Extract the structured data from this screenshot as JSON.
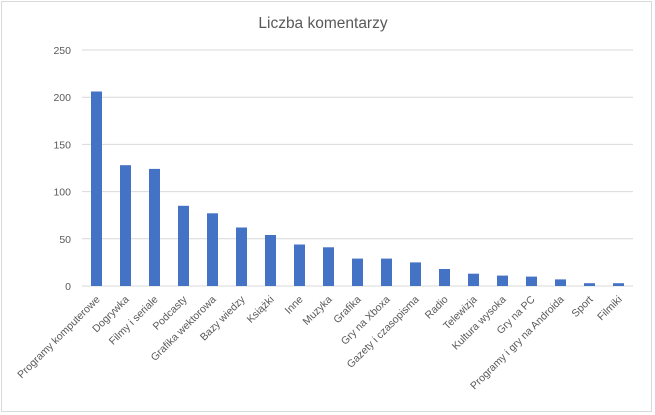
{
  "chart_data": {
    "type": "bar",
    "title": "Liczba komentarzy",
    "categories": [
      "Programy komputerowe",
      "Dogrywka",
      "Filmy i seriale",
      "Podcasty",
      "Grafika wektorowa",
      "Bazy wiedzy",
      "Książki",
      "Inne",
      "Muzyka",
      "Grafika",
      "Gry na Xboxa",
      "Gazety i czasopisma",
      "Radio",
      "Telewizja",
      "Kultura wysoka",
      "Gry na PC",
      "Programy i gry na Androida",
      "Sport",
      "Filmiki"
    ],
    "values": [
      206,
      128,
      124,
      85,
      77,
      62,
      54,
      44,
      41,
      29,
      29,
      25,
      18,
      13,
      11,
      10,
      7,
      3,
      3
    ],
    "ylim": [
      0,
      250
    ],
    "yticks": [
      "0",
      "50",
      "100",
      "150",
      "200",
      "250"
    ],
    "grid": true,
    "colors": {
      "bar": "#4472c4"
    }
  }
}
